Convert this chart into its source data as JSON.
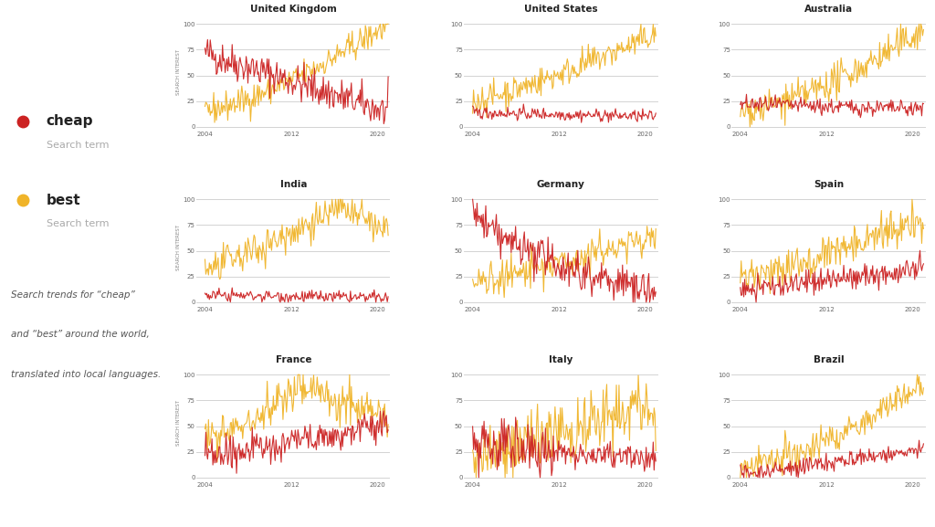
{
  "countries": [
    "United Kingdom",
    "United States",
    "Australia",
    "India",
    "Germany",
    "Spain",
    "France",
    "Italy",
    "Brazil"
  ],
  "cheap_color": "#cc2222",
  "best_color": "#f0b429",
  "bg_color": "#ffffff",
  "grid_color": "#cccccc",
  "ylabel": "SEARCH INTEREST",
  "yticks": [
    0,
    25,
    50,
    75,
    100
  ],
  "xticks": [
    2004,
    2012,
    2020
  ],
  "legend_cheap": "cheap",
  "legend_best": "best",
  "legend_sub": "Search term",
  "annotation": "Search trends for “cheap”\nand “best” around the world,\ntranslated into local languages."
}
